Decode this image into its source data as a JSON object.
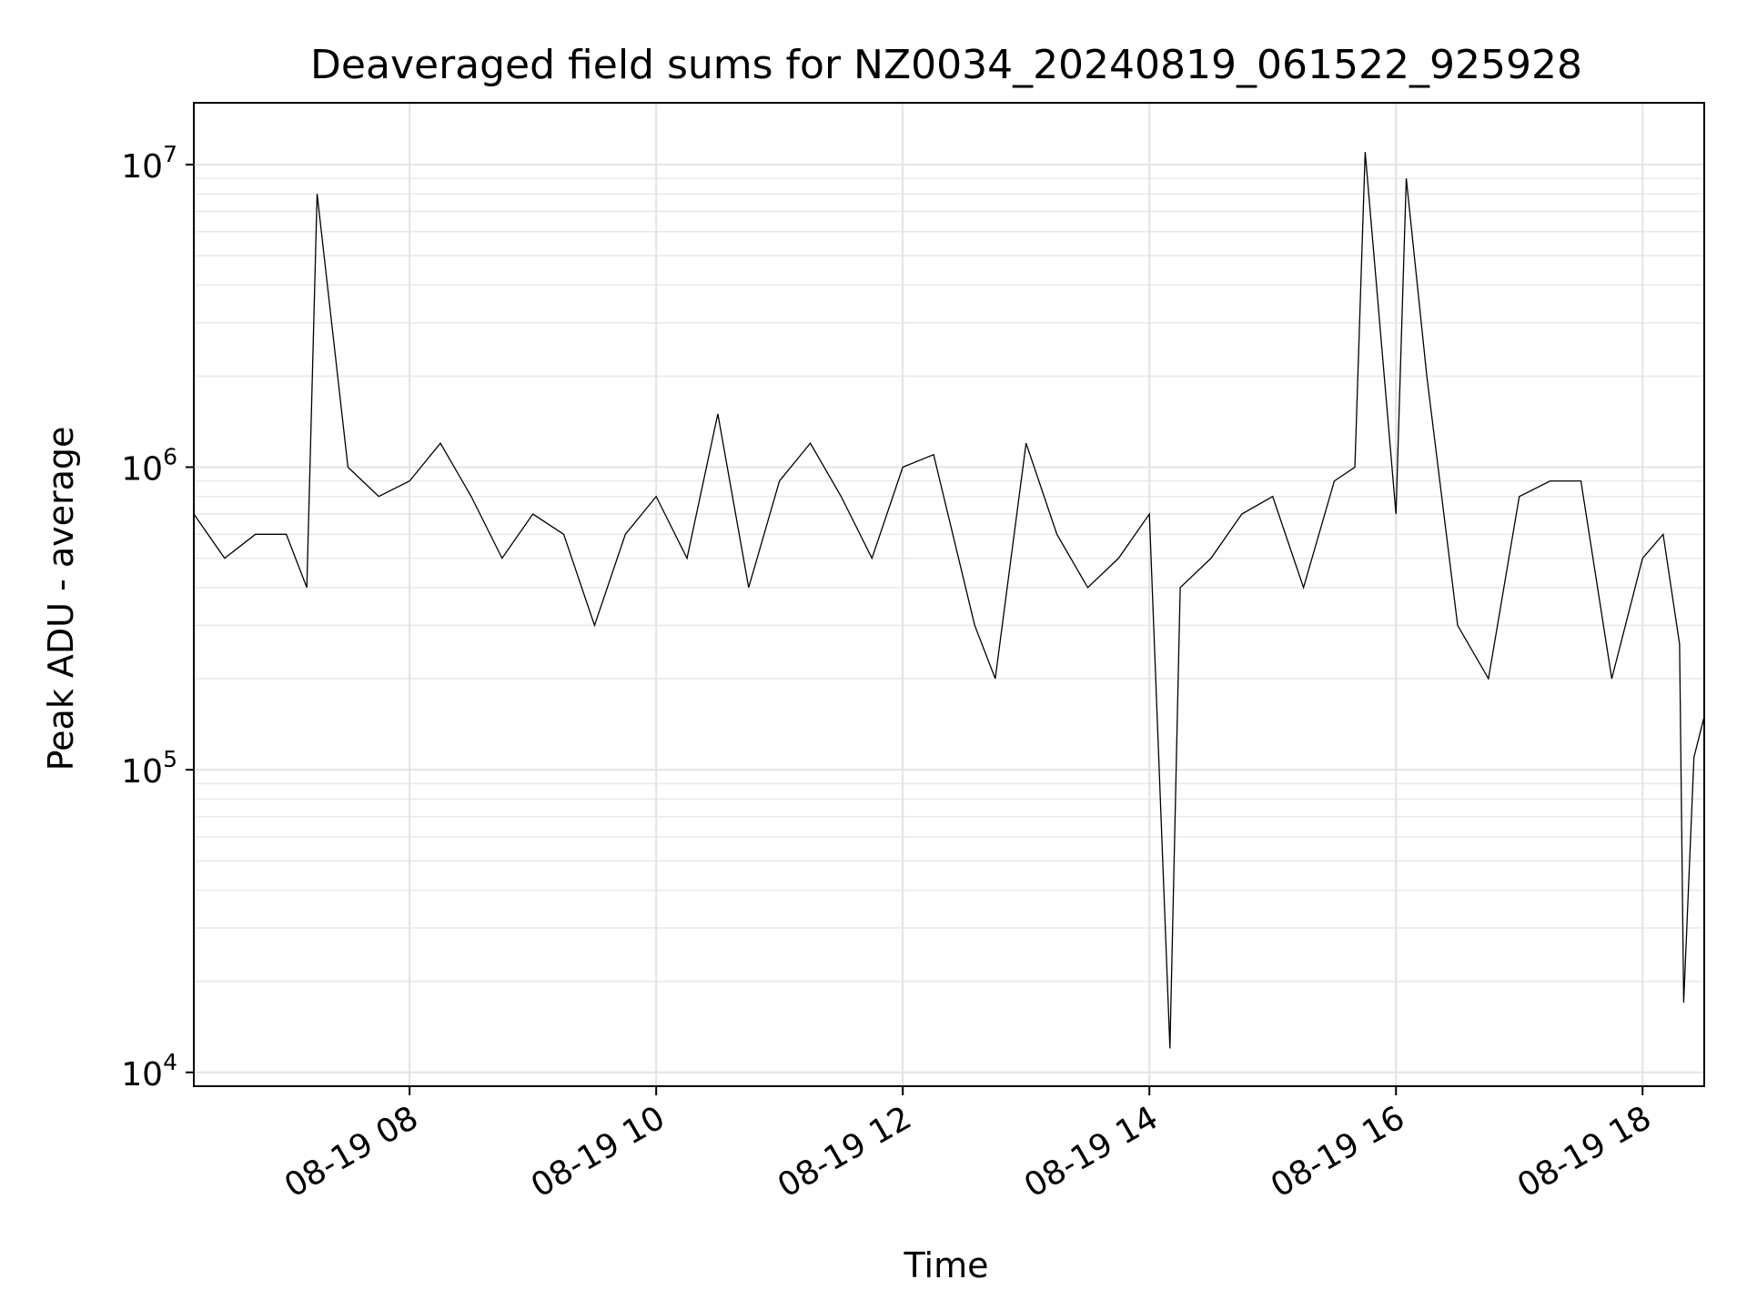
{
  "chart_data": {
    "type": "line",
    "title": "Deaveraged field sums for NZ0034_20240819_061522_925928",
    "xlabel": "Time",
    "ylabel": "Peak ADU - average",
    "y_scale": "log",
    "ylim": [
      9000,
      16000000
    ],
    "xlim": [
      "2024-08-19 06:15",
      "2024-08-19 18:30"
    ],
    "grid": true,
    "x_ticks": [
      {
        "value": "2024-08-19 08:00",
        "label": "08-19 08"
      },
      {
        "value": "2024-08-19 10:00",
        "label": "08-19 10"
      },
      {
        "value": "2024-08-19 12:00",
        "label": "08-19 12"
      },
      {
        "value": "2024-08-19 14:00",
        "label": "08-19 14"
      },
      {
        "value": "2024-08-19 16:00",
        "label": "08-19 16"
      },
      {
        "value": "2024-08-19 18:00",
        "label": "08-19 18"
      }
    ],
    "y_ticks": [
      {
        "value": 10000,
        "base": "10",
        "exp": "4"
      },
      {
        "value": 100000,
        "base": "10",
        "exp": "5"
      },
      {
        "value": 1000000,
        "base": "10",
        "exp": "6"
      },
      {
        "value": 10000000,
        "base": "10",
        "exp": "7"
      }
    ],
    "series": [
      {
        "color": "#000000",
        "x": [
          "2024-08-19 06:15",
          "2024-08-19 06:30",
          "2024-08-19 06:45",
          "2024-08-19 07:00",
          "2024-08-19 07:10",
          "2024-08-19 07:15",
          "2024-08-19 07:30",
          "2024-08-19 07:45",
          "2024-08-19 08:00",
          "2024-08-19 08:15",
          "2024-08-19 08:30",
          "2024-08-19 08:45",
          "2024-08-19 09:00",
          "2024-08-19 09:15",
          "2024-08-19 09:30",
          "2024-08-19 09:45",
          "2024-08-19 10:00",
          "2024-08-19 10:15",
          "2024-08-19 10:30",
          "2024-08-19 10:45",
          "2024-08-19 11:00",
          "2024-08-19 11:15",
          "2024-08-19 11:30",
          "2024-08-19 11:45",
          "2024-08-19 12:00",
          "2024-08-19 12:15",
          "2024-08-19 12:35",
          "2024-08-19 12:45",
          "2024-08-19 13:00",
          "2024-08-19 13:15",
          "2024-08-19 13:30",
          "2024-08-19 13:45",
          "2024-08-19 14:00",
          "2024-08-19 14:10",
          "2024-08-19 14:15",
          "2024-08-19 14:30",
          "2024-08-19 14:45",
          "2024-08-19 15:00",
          "2024-08-19 15:15",
          "2024-08-19 15:30",
          "2024-08-19 15:40",
          "2024-08-19 15:45",
          "2024-08-19 16:00",
          "2024-08-19 16:05",
          "2024-08-19 16:15",
          "2024-08-19 16:30",
          "2024-08-19 16:45",
          "2024-08-19 17:00",
          "2024-08-19 17:15",
          "2024-08-19 17:30",
          "2024-08-19 17:45",
          "2024-08-19 18:00",
          "2024-08-19 18:10",
          "2024-08-19 18:18",
          "2024-08-19 18:20",
          "2024-08-19 18:25",
          "2024-08-19 18:30"
        ],
        "y": [
          700000,
          500000,
          600000,
          600000,
          400000,
          8000000,
          1000000,
          800000,
          900000,
          1200000,
          800000,
          500000,
          700000,
          600000,
          300000,
          600000,
          800000,
          500000,
          1500000,
          400000,
          900000,
          1200000,
          800000,
          500000,
          1000000,
          1100000,
          300000,
          200000,
          1200000,
          600000,
          400000,
          500000,
          700000,
          12000,
          400000,
          500000,
          700000,
          800000,
          400000,
          900000,
          1000000,
          11000000,
          700000,
          9000000,
          2000000,
          300000,
          200000,
          800000,
          900000,
          900000,
          200000,
          500000,
          600000,
          260000,
          17000,
          110000,
          150000
        ]
      }
    ]
  }
}
